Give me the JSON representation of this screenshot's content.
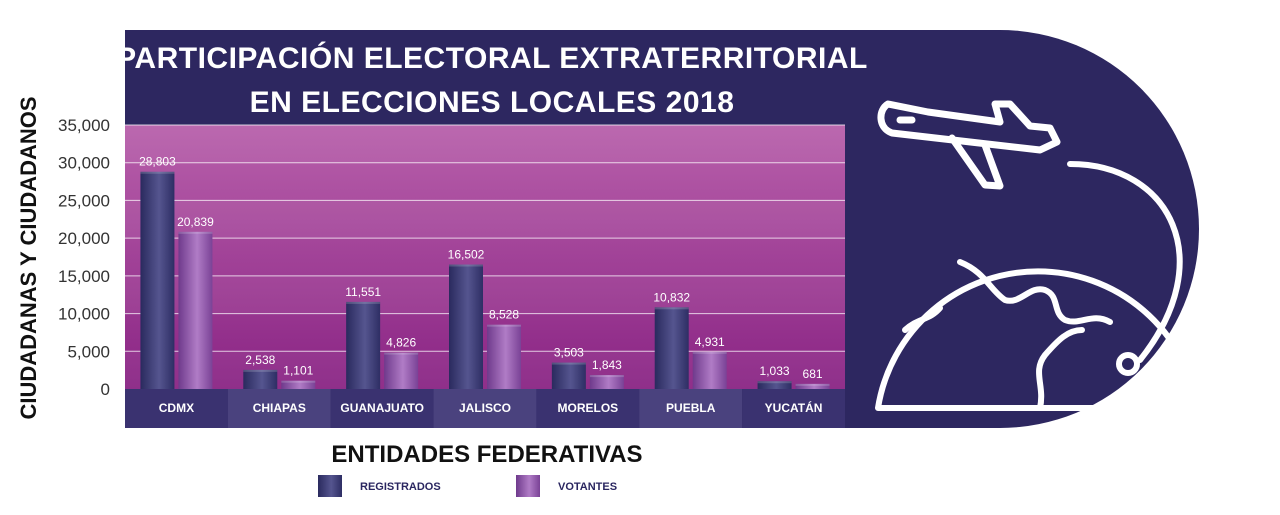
{
  "colors": {
    "panel": "#2d2760",
    "plot_top": "#b25aa5",
    "plot_bottom": "#8e2a86",
    "registrados": "#3a3a72",
    "votantes": "#8a4a9e",
    "icon_stroke": "#ffffff"
  },
  "illustration": {
    "icons": [
      "airplane-icon",
      "globe-icon"
    ]
  },
  "chart_data": {
    "type": "bar",
    "title_lines": [
      "PARTICIPACIÓN ELECTORAL EXTRATERRITORIAL",
      "EN ELECCIONES LOCALES 2018"
    ],
    "xlabel": "ENTIDADES FEDERATIVAS",
    "ylabel": "CIUDADANAS Y CIUDADANOS",
    "ylim": [
      0,
      35000
    ],
    "yticks": [
      0,
      5000,
      10000,
      15000,
      20000,
      25000,
      30000,
      35000
    ],
    "ytick_labels": [
      "0",
      "5,000",
      "10,000",
      "15,000",
      "20,000",
      "25,000",
      "30,000",
      "35,000"
    ],
    "categories": [
      "CDMX",
      "CHIAPAS",
      "GUANAJUATO",
      "JALISCO",
      "MORELOS",
      "PUEBLA",
      "YUCATÁN"
    ],
    "series": [
      {
        "name": "REGISTRADOS",
        "values": [
          28803,
          2538,
          11551,
          16502,
          3503,
          10832,
          1033
        ],
        "labels": [
          "28,803",
          "2,538",
          "11,551",
          "16,502",
          "3,503",
          "10,832",
          "1,033"
        ]
      },
      {
        "name": "VOTANTES",
        "values": [
          20839,
          1101,
          4826,
          8528,
          1843,
          4931,
          681
        ],
        "labels": [
          "20,839",
          "1,101",
          "4,826",
          "8,528",
          "1,843",
          "4,931",
          "681"
        ]
      }
    ],
    "legend_position": "bottom-center",
    "grid": true
  }
}
